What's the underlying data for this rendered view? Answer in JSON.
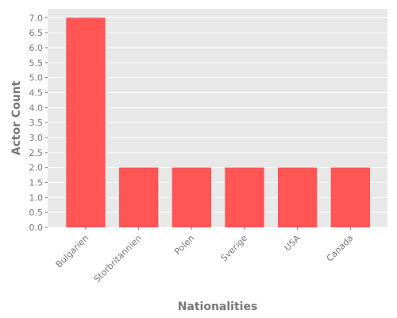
{
  "chart_data": {
    "type": "bar",
    "title": "",
    "xlabel": "Nationalities",
    "ylabel": "Actor Count",
    "categories": [
      "Bulgarien",
      "Storbritannien",
      "Polen",
      "Sverige",
      "USA",
      "Canada"
    ],
    "values": [
      7,
      2,
      2,
      2,
      2,
      2
    ],
    "ylim": [
      0,
      7.3
    ],
    "yticks": [
      "0.0",
      "0.5",
      "1.0",
      "1.5",
      "2.0",
      "2.5",
      "3.0",
      "3.5",
      "4.0",
      "4.5",
      "5.0",
      "5.5",
      "6.0",
      "6.5",
      "7.0"
    ],
    "grid": true,
    "legend": "none",
    "colors": {
      "bar": "#ff5555",
      "plot_background": "#e8e8e8",
      "grid": "#ffffff",
      "text": "#777777"
    }
  }
}
